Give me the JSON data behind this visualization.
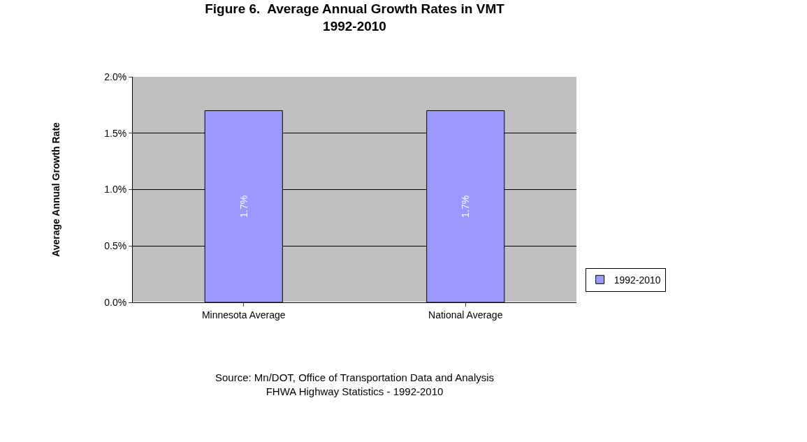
{
  "chart_data": {
    "type": "bar",
    "title": "Figure 6.  Average Annual Growth Rates in VMT\n1992-2010",
    "ylabel": "Average Annual Growth Rate",
    "categories": [
      "Minnesota Average",
      "National Average"
    ],
    "series": [
      {
        "name": "1992-2010",
        "color": "#9999ff",
        "values": [
          1.7,
          1.7
        ],
        "value_labels": [
          "1.7%",
          "1.7%"
        ]
      }
    ],
    "ylim": [
      0,
      2.0
    ],
    "yticks": [
      {
        "value": 0,
        "label": "0.0%"
      },
      {
        "value": 0.5,
        "label": "0.5%"
      },
      {
        "value": 1.0,
        "label": "1.0%"
      },
      {
        "value": 1.5,
        "label": "1.5%"
      },
      {
        "value": 2.0,
        "label": "2.0%"
      }
    ],
    "grid": "y",
    "legend": "right",
    "annotations": [
      "Source: Mn/DOT, Office of Transportation Data and Analysis\nFHWA Highway Statistics - 1992-2010"
    ]
  }
}
